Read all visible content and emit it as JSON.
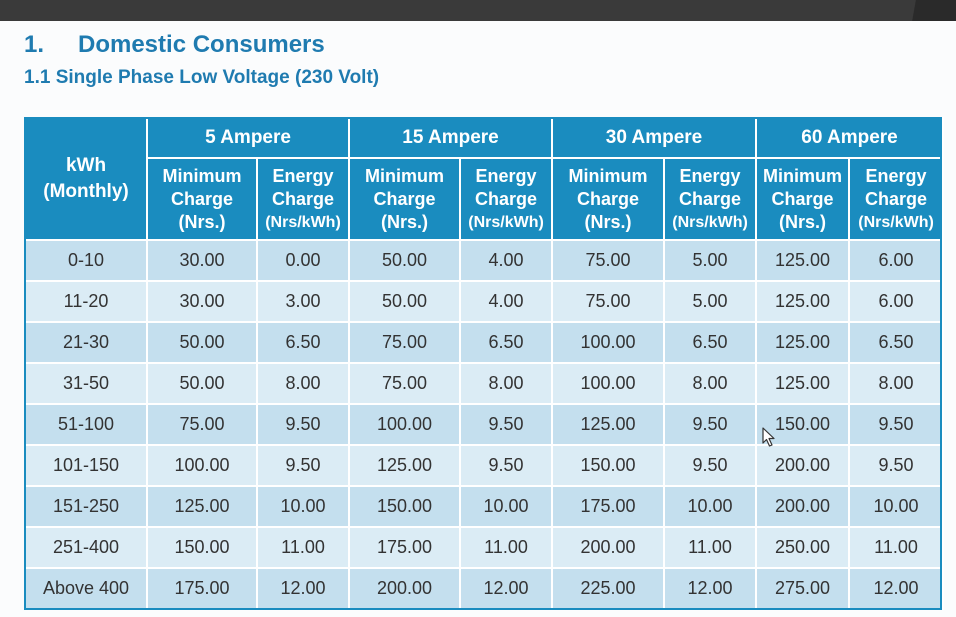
{
  "heading": {
    "number": "1.",
    "title": "Domestic Consumers",
    "subtitle": "1.1 Single Phase Low Voltage (230 Volt)"
  },
  "table": {
    "kwh_header": [
      "kWh",
      "(Monthly)"
    ],
    "groups": [
      "5 Ampere",
      "15 Ampere",
      "30 Ampere",
      "60 Ampere"
    ],
    "sub_headers": {
      "min": [
        "Minimum",
        "Charge",
        "(Nrs.)"
      ],
      "energy": [
        "Energy",
        "Charge",
        "(Nrs/kWh)"
      ]
    },
    "rows": [
      [
        "0-10",
        "30.00",
        "0.00",
        "50.00",
        "4.00",
        "75.00",
        "5.00",
        "125.00",
        "6.00"
      ],
      [
        "11-20",
        "30.00",
        "3.00",
        "50.00",
        "4.00",
        "75.00",
        "5.00",
        "125.00",
        "6.00"
      ],
      [
        "21-30",
        "50.00",
        "6.50",
        "75.00",
        "6.50",
        "100.00",
        "6.50",
        "125.00",
        "6.50"
      ],
      [
        "31-50",
        "50.00",
        "8.00",
        "75.00",
        "8.00",
        "100.00",
        "8.00",
        "125.00",
        "8.00"
      ],
      [
        "51-100",
        "75.00",
        "9.50",
        "100.00",
        "9.50",
        "125.00",
        "9.50",
        "150.00",
        "9.50"
      ],
      [
        "101-150",
        "100.00",
        "9.50",
        "125.00",
        "9.50",
        "150.00",
        "9.50",
        "200.00",
        "9.50"
      ],
      [
        "151-250",
        "125.00",
        "10.00",
        "150.00",
        "10.00",
        "175.00",
        "10.00",
        "200.00",
        "10.00"
      ],
      [
        "251-400",
        "150.00",
        "11.00",
        "175.00",
        "11.00",
        "200.00",
        "11.00",
        "250.00",
        "11.00"
      ],
      [
        "Above 400",
        "175.00",
        "12.00",
        "200.00",
        "12.00",
        "225.00",
        "12.00",
        "275.00",
        "12.00"
      ]
    ]
  },
  "colors": {
    "heading": "#1f7bb0",
    "header_bg": "#1a8cbf",
    "row_odd": "#c4dfee",
    "row_even": "#dbecf5"
  },
  "icons": {
    "cursor": "mouse-pointer-icon"
  }
}
